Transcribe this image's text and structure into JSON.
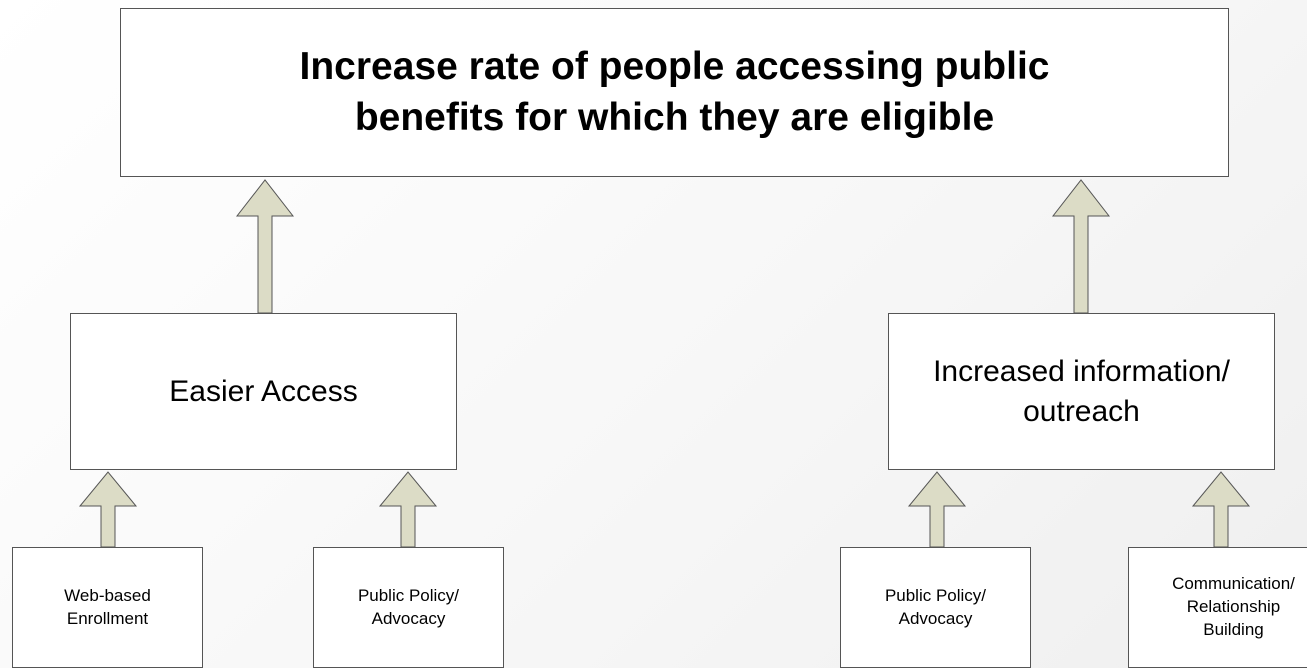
{
  "diagram": {
    "goal": "Increase rate of people accessing public\nbenefits for which they are eligible",
    "branches": [
      {
        "label": "Easier Access",
        "inputs": [
          "Web-based\nEnrollment",
          "Public Policy/\nAdvocacy"
        ]
      },
      {
        "label": "Increased information/\noutreach",
        "inputs": [
          "Public Policy/\nAdvocacy",
          "Communication/\nRelationship\nBuilding"
        ]
      }
    ],
    "colors": {
      "arrow_fill": "#dcdcc6",
      "border": "#555555",
      "box_fill": "#ffffff"
    }
  }
}
